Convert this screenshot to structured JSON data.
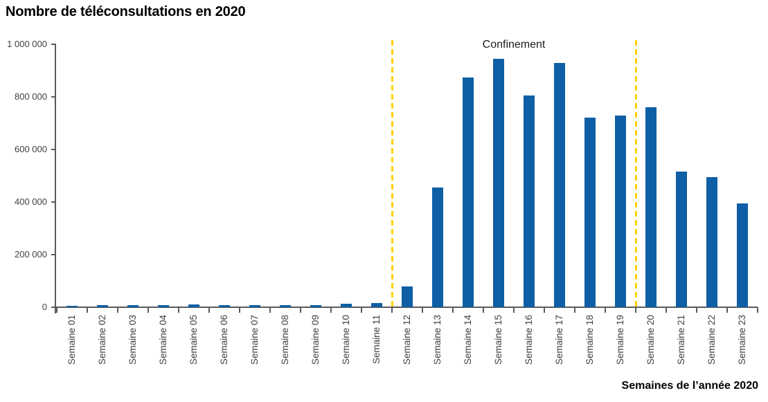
{
  "chart_data": {
    "type": "bar",
    "title": "Nombre de téléconsultations en 2020",
    "xlabel": "Semaines de l’année 2020",
    "ylabel": "",
    "categories": [
      "Semaine 01",
      "Semaine 02",
      "Semaine 03",
      "Semaine 04",
      "Semaine 05",
      "Semaine 06",
      "Semaine 07",
      "Semaine 08",
      "Semaine 09",
      "Semaine 10",
      "Semaine 11",
      "Semaine 12",
      "Semaine 13",
      "Semaine 14",
      "Semaine 15",
      "Semaine 16",
      "Semaine 17",
      "Semaine 18",
      "Semaine 19",
      "Semaine 20",
      "Semaine 21",
      "Semaine 22",
      "Semaine 23"
    ],
    "values": [
      4000,
      9000,
      9000,
      9000,
      10000,
      9000,
      8000,
      9000,
      9000,
      12000,
      15000,
      80000,
      455000,
      875000,
      945000,
      805000,
      930000,
      720000,
      730000,
      760000,
      515000,
      495000,
      395000
    ],
    "ylim": [
      0,
      1000000
    ],
    "yticks": [
      0,
      200000,
      400000,
      600000,
      800000,
      1000000
    ],
    "ytick_labels": [
      "0",
      "200 000",
      "400 000",
      "600 000",
      "800 000",
      "1 000 000"
    ],
    "grid": false,
    "legend": "none",
    "bar_color": "#0E5FA5",
    "axis_color": "#595959",
    "tick_label_color": "#3f3f3f",
    "annotation": {
      "label": "Confinement",
      "line_color": "#FFD100",
      "line_style": "dashed",
      "start_boundary_index": 11,
      "end_boundary_index": 19
    }
  }
}
